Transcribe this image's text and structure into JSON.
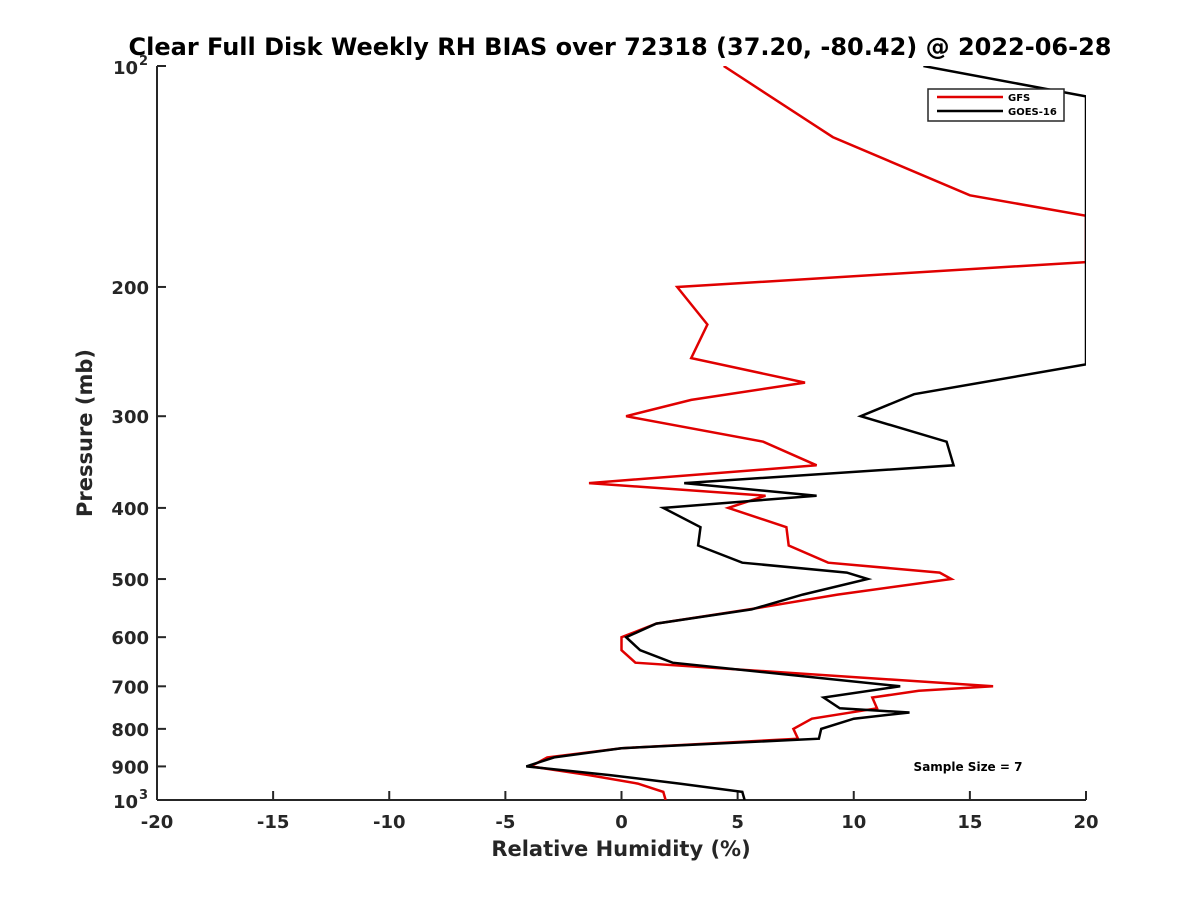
{
  "chart_data": {
    "type": "line",
    "title": "Clear Full Disk Weekly RH BIAS over 72318 (37.20, -80.42) @ 2022-06-28",
    "xlabel": "Relative Humidity (%)",
    "ylabel": "Pressure (mb)",
    "xlim": [
      -20,
      20
    ],
    "ylim": [
      100,
      1000
    ],
    "y_scale": "log",
    "y_reversed": true,
    "grid": false,
    "legend_position": "top-right",
    "annotation": "Sample Size = 7",
    "x_ticks": [
      "-20",
      "-15",
      "-10",
      "-5",
      "0",
      "5",
      "10",
      "15",
      "20"
    ],
    "y_ticks": [
      {
        "value": 100,
        "base": "10",
        "exp": "2"
      },
      {
        "value": 200,
        "label": "200"
      },
      {
        "value": 300,
        "label": "300"
      },
      {
        "value": 400,
        "label": "400"
      },
      {
        "value": 500,
        "label": "500"
      },
      {
        "value": 600,
        "label": "600"
      },
      {
        "value": 700,
        "label": "700"
      },
      {
        "value": 800,
        "label": "800"
      },
      {
        "value": 900,
        "label": "900"
      },
      {
        "value": 1000,
        "base": "10",
        "exp": "3"
      }
    ],
    "series": [
      {
        "name": "GFS",
        "color": "#e00000",
        "points": [
          [
            4.4,
            100
          ],
          [
            9.1,
            125
          ],
          [
            15.0,
            150
          ],
          [
            20.0,
            160
          ],
          [
            20.0,
            185
          ],
          [
            2.4,
            200
          ],
          [
            3.7,
            225
          ],
          [
            3.0,
            250
          ],
          [
            7.9,
            270
          ],
          [
            3.0,
            285
          ],
          [
            0.2,
            300
          ],
          [
            6.1,
            325
          ],
          [
            8.4,
            350
          ],
          [
            -1.4,
            370
          ],
          [
            6.2,
            385
          ],
          [
            4.6,
            400
          ],
          [
            7.1,
            425
          ],
          [
            7.2,
            450
          ],
          [
            8.9,
            475
          ],
          [
            13.7,
            490
          ],
          [
            14.2,
            500
          ],
          [
            9.3,
            525
          ],
          [
            5.5,
            550
          ],
          [
            1.5,
            575
          ],
          [
            0.0,
            600
          ],
          [
            0.0,
            625
          ],
          [
            0.6,
            650
          ],
          [
            16.0,
            700
          ],
          [
            12.8,
            710
          ],
          [
            10.8,
            725
          ],
          [
            11.0,
            750
          ],
          [
            8.2,
            775
          ],
          [
            7.4,
            800
          ],
          [
            7.6,
            825
          ],
          [
            0.0,
            850
          ],
          [
            -3.2,
            875
          ],
          [
            -3.9,
            900
          ],
          [
            -1.4,
            925
          ],
          [
            0.7,
            950
          ],
          [
            1.8,
            975
          ],
          [
            1.9,
            1000
          ]
        ]
      },
      {
        "name": "GOES-16",
        "color": "#000000",
        "points": [
          [
            13.0,
            100
          ],
          [
            20.0,
            110
          ],
          [
            20.0,
            255
          ],
          [
            12.6,
            280
          ],
          [
            10.3,
            300
          ],
          [
            14.0,
            325
          ],
          [
            14.3,
            350
          ],
          [
            2.7,
            370
          ],
          [
            8.4,
            385
          ],
          [
            1.8,
            400
          ],
          [
            3.4,
            425
          ],
          [
            3.3,
            450
          ],
          [
            5.2,
            475
          ],
          [
            9.7,
            490
          ],
          [
            10.6,
            500
          ],
          [
            7.8,
            525
          ],
          [
            5.6,
            550
          ],
          [
            1.5,
            575
          ],
          [
            0.2,
            600
          ],
          [
            0.8,
            625
          ],
          [
            2.2,
            650
          ],
          [
            12.0,
            700
          ],
          [
            8.7,
            725
          ],
          [
            9.4,
            750
          ],
          [
            12.4,
            760
          ],
          [
            10.0,
            775
          ],
          [
            8.6,
            800
          ],
          [
            8.5,
            825
          ],
          [
            0.0,
            850
          ],
          [
            -2.9,
            875
          ],
          [
            -4.1,
            900
          ],
          [
            -0.5,
            925
          ],
          [
            2.5,
            950
          ],
          [
            5.2,
            975
          ],
          [
            5.3,
            1000
          ]
        ]
      }
    ]
  }
}
